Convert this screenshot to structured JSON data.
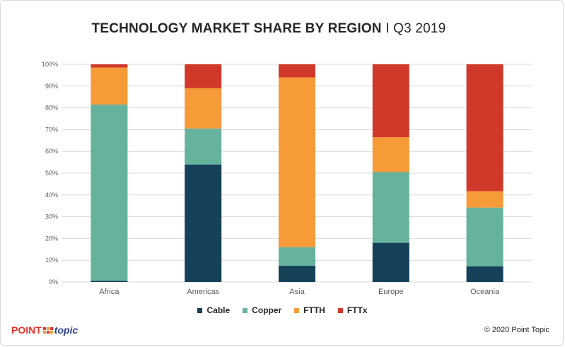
{
  "title": {
    "bold": "TECHNOLOGY MARKET SHARE BY REGION",
    "separator": " I ",
    "light": "Q3 2019"
  },
  "footer": {
    "logo_point": "POINT",
    "logo_topic": "topic",
    "copyright": "© 2020 Point Topic"
  },
  "colors": {
    "Cable": "#154159",
    "Copper": "#65b39d",
    "FTTH": "#f79a38",
    "FTTx": "#d0392a",
    "grid": "#d9d9d9",
    "text": "#595959"
  },
  "chart_data": {
    "type": "bar",
    "stacked": true,
    "title": "TECHNOLOGY MARKET SHARE BY REGION I Q3 2019",
    "categories": [
      "Africa",
      "Americas",
      "Asia",
      "Europe",
      "Oceania"
    ],
    "series": [
      {
        "name": "Cable",
        "values": [
          0.5,
          54,
          7.5,
          18,
          7.2
        ]
      },
      {
        "name": "Copper",
        "values": [
          81,
          16.5,
          8.5,
          32.5,
          27
        ]
      },
      {
        "name": "FTTH",
        "values": [
          17,
          18.5,
          78,
          16,
          7.5
        ]
      },
      {
        "name": "FTTx",
        "values": [
          1.5,
          11,
          6,
          33.5,
          58.3
        ]
      }
    ],
    "yticks": [
      "0%",
      "10%",
      "20%",
      "30%",
      "40%",
      "50%",
      "60%",
      "70%",
      "80%",
      "90%",
      "100%"
    ],
    "ylim": [
      0,
      100
    ],
    "grid": true,
    "legend": "bottom"
  }
}
